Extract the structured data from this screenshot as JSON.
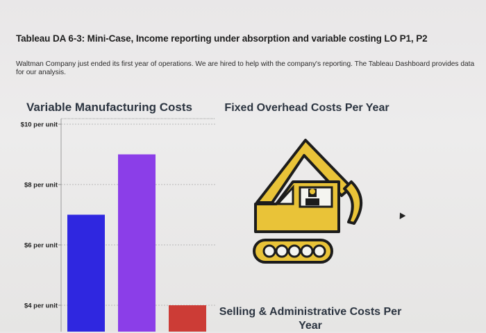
{
  "document": {
    "heading": "Tableau DA 6-3: Mini-Case, Income reporting under absorption and variable costing LO P1, P2",
    "intro": "Waltman Company just ended its first year of operations. We are hired to help with the company's reporting. The Tableau Dashboard provides data for our analysis."
  },
  "dashboard": {
    "fixed_overhead_title": "Fixed Overhead Costs Per Year",
    "selling_admin_title": "Selling & Administrative Costs Per Year",
    "fixed_overhead_icon": "excavator-icon"
  },
  "chart_data": {
    "type": "bar",
    "title": "Variable Manufacturing Costs",
    "xlabel": "",
    "ylabel": "",
    "ylim": [
      3.0,
      10.0
    ],
    "y_ticks": [
      {
        "value": 10,
        "label": "$10 per unit"
      },
      {
        "value": 8,
        "label": "$8 per unit"
      },
      {
        "value": 6,
        "label": "$6 per unit"
      },
      {
        "value": 4,
        "label": "$4 per unit"
      }
    ],
    "categories": [
      "",
      "",
      ""
    ],
    "values": [
      7.0,
      9.0,
      4.0
    ],
    "colors": [
      "#2f27e0",
      "#8b3ee8",
      "#cc3c36"
    ],
    "grid": true
  }
}
